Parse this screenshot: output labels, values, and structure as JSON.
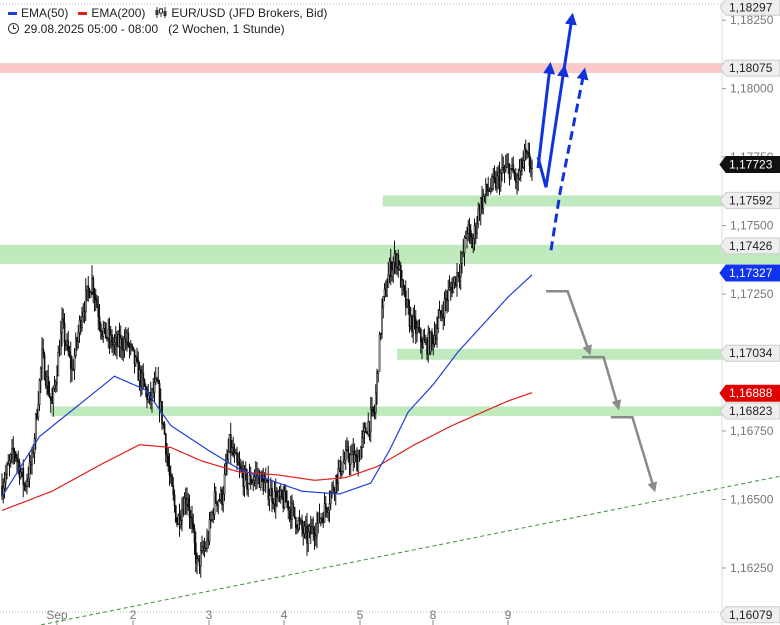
{
  "header": {
    "ema50_label": "EMA(50)",
    "ema200_label": "EMA(200)",
    "instrument": "EUR/USD (JFD Brokers, Bid)",
    "timeframe": "29.08.2025 05:00 - 08:00",
    "range": "(2 Wochen, 1 Stunde)",
    "icon": "candles-icon"
  },
  "colors": {
    "ema50": "#1f3fd6",
    "ema200": "#e0201b",
    "candle": "#111111",
    "zone_green": "#b9e8b6",
    "zone_red": "#f9c3c3",
    "arrow_blue": "#1133dd",
    "arrow_grey": "#8a8a8a",
    "trendline": "#3f8f3f",
    "grid": "#bbbbbb"
  },
  "chart_data": {
    "type": "candlestick",
    "ylim": [
      1.1606,
      1.1832
    ],
    "y_ticks": [
      "1,18250",
      "1,18000",
      "1,17750",
      "1,17500",
      "1,17250",
      "1,16750",
      "1,16500",
      "1,16250"
    ],
    "x_ticks": [
      "Sep",
      "2",
      "3",
      "4",
      "5",
      "8",
      "9"
    ],
    "price_tags": [
      {
        "label": "1,18297",
        "value": 1.18297,
        "style": "grey"
      },
      {
        "label": "1,18075",
        "value": 1.18075,
        "style": "grey"
      },
      {
        "label": "1,17723",
        "value": 1.17723,
        "style": "black"
      },
      {
        "label": "1,17592",
        "value": 1.17592,
        "style": "grey"
      },
      {
        "label": "1,17426",
        "value": 1.17426,
        "style": "grey"
      },
      {
        "label": "1,17327",
        "value": 1.17327,
        "style": "blue"
      },
      {
        "label": "1,17034",
        "value": 1.17034,
        "style": "grey"
      },
      {
        "label": "1,16888",
        "value": 1.16888,
        "style": "red"
      },
      {
        "label": "1,16823",
        "value": 1.16823,
        "style": "grey"
      },
      {
        "label": "1,16079",
        "value": 1.16079,
        "style": "grey"
      }
    ],
    "zones": [
      {
        "from": 1.18057,
        "to": 1.18093,
        "color": "red",
        "start_frac": 0.0
      },
      {
        "from": 1.1757,
        "to": 1.1761,
        "color": "green",
        "start_frac": 0.53
      },
      {
        "from": 1.1736,
        "to": 1.1743,
        "color": "green",
        "start_frac": 0.0
      },
      {
        "from": 1.1701,
        "to": 1.1705,
        "color": "green",
        "start_frac": 0.55
      },
      {
        "from": 1.16805,
        "to": 1.1684,
        "color": "green",
        "start_frac": 0.07
      }
    ],
    "close_anchors": [
      [
        0,
        1.1655
      ],
      [
        10,
        1.1668
      ],
      [
        18,
        1.1655
      ],
      [
        24,
        1.1664
      ],
      [
        32,
        1.1702
      ],
      [
        40,
        1.1684
      ],
      [
        48,
        1.1713
      ],
      [
        56,
        1.1697
      ],
      [
        64,
        1.1719
      ],
      [
        72,
        1.173
      ],
      [
        80,
        1.1712
      ],
      [
        90,
        1.1706
      ],
      [
        100,
        1.1708
      ],
      [
        110,
        1.1695
      ],
      [
        118,
        1.1686
      ],
      [
        124,
        1.1692
      ],
      [
        130,
        1.1674
      ],
      [
        134,
        1.1658
      ],
      [
        140,
        1.1642
      ],
      [
        148,
        1.1652
      ],
      [
        156,
        1.1626
      ],
      [
        164,
        1.1634
      ],
      [
        170,
        1.165
      ],
      [
        176,
        1.1651
      ],
      [
        182,
        1.167
      ],
      [
        188,
        1.1662
      ],
      [
        196,
        1.1656
      ],
      [
        204,
        1.1659
      ],
      [
        212,
        1.1654
      ],
      [
        220,
        1.165
      ],
      [
        228,
        1.1649
      ],
      [
        236,
        1.1642
      ],
      [
        244,
        1.1636
      ],
      [
        252,
        1.1641
      ],
      [
        260,
        1.1648
      ],
      [
        268,
        1.1659
      ],
      [
        276,
        1.1666
      ],
      [
        284,
        1.1664
      ],
      [
        292,
        1.1677
      ],
      [
        298,
        1.1682
      ],
      [
        304,
        1.1719
      ],
      [
        310,
        1.1734
      ],
      [
        316,
        1.1739
      ],
      [
        320,
        1.1727
      ],
      [
        326,
        1.1716
      ],
      [
        332,
        1.1711
      ],
      [
        338,
        1.1706
      ],
      [
        344,
        1.1708
      ],
      [
        350,
        1.1716
      ],
      [
        356,
        1.1724
      ],
      [
        362,
        1.173
      ],
      [
        368,
        1.1737
      ],
      [
        372,
        1.1749
      ],
      [
        376,
        1.1743
      ],
      [
        382,
        1.1757
      ],
      [
        388,
        1.1763
      ],
      [
        394,
        1.1765
      ],
      [
        400,
        1.1769
      ],
      [
        406,
        1.1771
      ],
      [
        412,
        1.1766
      ],
      [
        418,
        1.1775
      ],
      [
        424,
        1.1772
      ]
    ],
    "ema50_anchors": [
      [
        0,
        1.1651
      ],
      [
        30,
        1.1673
      ],
      [
        60,
        1.1684
      ],
      [
        90,
        1.1695
      ],
      [
        115,
        1.169
      ],
      [
        135,
        1.1677
      ],
      [
        165,
        1.1668
      ],
      [
        190,
        1.1661
      ],
      [
        215,
        1.1657
      ],
      [
        240,
        1.1653
      ],
      [
        270,
        1.1652
      ],
      [
        295,
        1.1656
      ],
      [
        310,
        1.1668
      ],
      [
        325,
        1.1682
      ],
      [
        345,
        1.1692
      ],
      [
        365,
        1.1704
      ],
      [
        385,
        1.1714
      ],
      [
        405,
        1.1724
      ],
      [
        424,
        1.1732
      ]
    ],
    "ema200_anchors": [
      [
        0,
        1.1646
      ],
      [
        40,
        1.1653
      ],
      [
        80,
        1.1663
      ],
      [
        110,
        1.167
      ],
      [
        135,
        1.1669
      ],
      [
        160,
        1.1664
      ],
      [
        190,
        1.166
      ],
      [
        220,
        1.1659
      ],
      [
        250,
        1.1657
      ],
      [
        275,
        1.1658
      ],
      [
        300,
        1.1662
      ],
      [
        330,
        1.167
      ],
      [
        360,
        1.1677
      ],
      [
        385,
        1.1682
      ],
      [
        405,
        1.1686
      ],
      [
        424,
        1.1689
      ]
    ],
    "blue_arrows": [
      {
        "path": [
          [
            1.1775,
            0.0
          ],
          [
            1.181,
            4.4
          ]
        ],
        "dashed": false,
        "target_x": 8.0
      },
      {
        "path": [
          [
            1.1764,
            0.0
          ],
          [
            1.1807,
            4.4
          ]
        ],
        "dashed": false,
        "pivot": [
          1.1764,
          0
        ]
      },
      {
        "path": [
          [
            1.1741,
            0.0
          ],
          [
            1.1806,
            5.0
          ]
        ],
        "dashed": true
      },
      {
        "path": [
          [
            1.1806,
            3.5
          ],
          [
            1.1824,
            5.2
          ]
        ],
        "dashed": false
      }
    ],
    "grey_arrows": [
      [
        [
          1.1726,
          0
        ],
        [
          1.1726,
          3
        ],
        [
          1.1704,
          6
        ]
      ],
      [
        [
          1.1702,
          5
        ],
        [
          1.1702,
          8
        ],
        [
          1.1684,
          10
        ]
      ],
      [
        [
          1.168,
          9
        ],
        [
          1.168,
          12
        ],
        [
          1.1654,
          15
        ]
      ]
    ],
    "trendline": [
      [
        1.16056,
        0.0
      ],
      [
        1.16585,
        1.0
      ]
    ]
  }
}
